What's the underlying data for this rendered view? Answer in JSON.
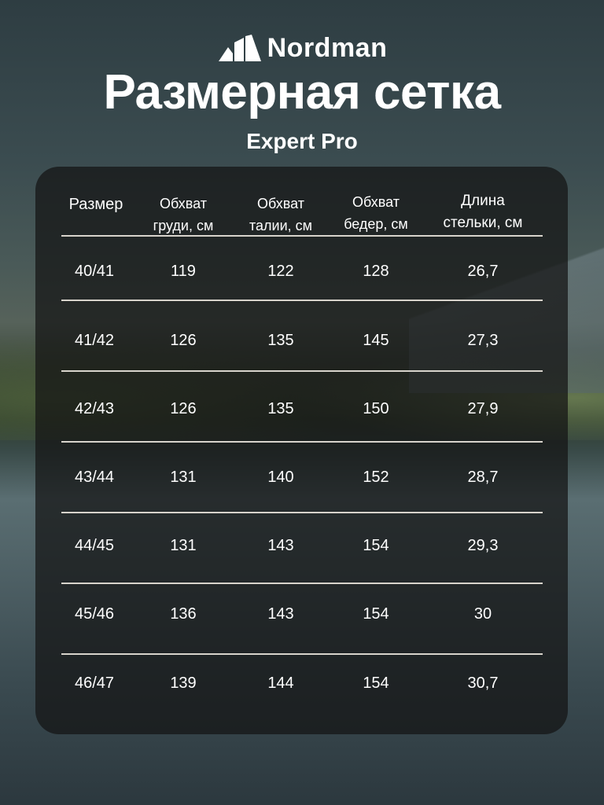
{
  "brand": {
    "name": "Nordman"
  },
  "title": "Размерная сетка",
  "subtitle": "Expert Pro",
  "table": {
    "headers": [
      [
        "Размер"
      ],
      [
        "Обхват",
        "груди, см"
      ],
      [
        "Обхват",
        "талии, см"
      ],
      [
        "Обхват",
        "бедер, см"
      ],
      [
        "Длина",
        "стельки, см"
      ]
    ],
    "rows": [
      [
        "40/41",
        "119",
        "122",
        "128",
        "26,7"
      ],
      [
        "41/42",
        "126",
        "135",
        "145",
        "27,3"
      ],
      [
        "42/43",
        "126",
        "135",
        "150",
        "27,9"
      ],
      [
        "43/44",
        "131",
        "140",
        "152",
        "28,7"
      ],
      [
        "44/45",
        "131",
        "143",
        "154",
        "29,3"
      ],
      [
        "45/46",
        "136",
        "143",
        "154",
        "30"
      ],
      [
        "46/47",
        "139",
        "144",
        "154",
        "30,7"
      ]
    ]
  }
}
